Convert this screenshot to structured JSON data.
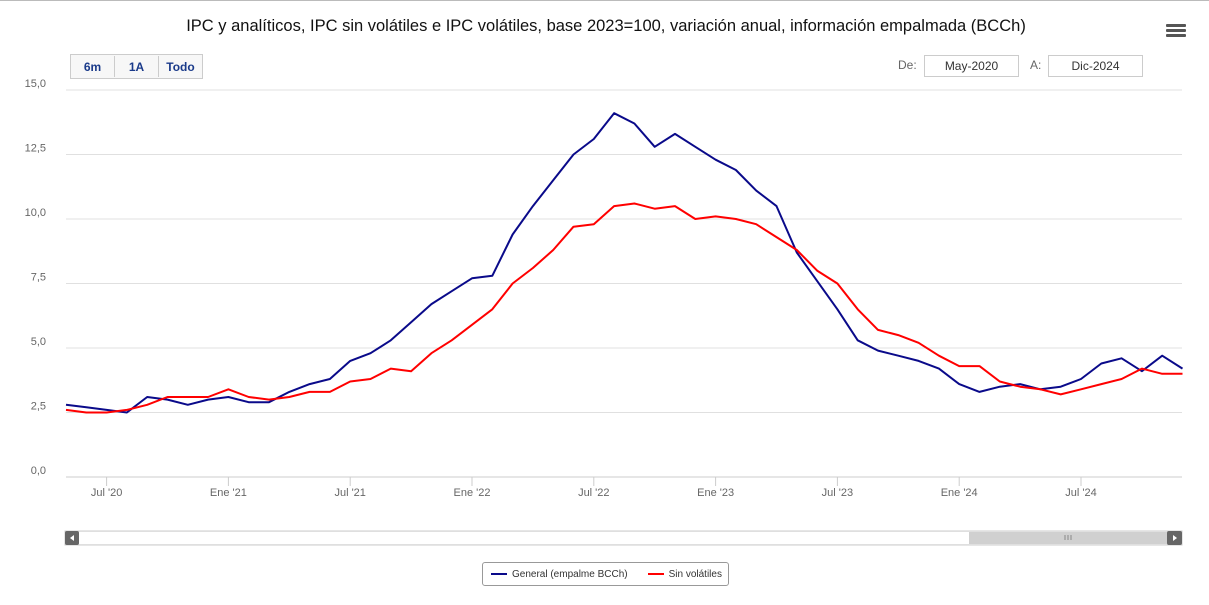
{
  "chart_title": "IPC y analíticos, IPC sin volátiles e IPC volátiles, base 2023=100, variación anual, información empalmada (BCCh)",
  "range_selector": {
    "buttons": [
      "6m",
      "1A",
      "Todo"
    ]
  },
  "date_range": {
    "from_label": "De:",
    "from_value": "May-2020",
    "to_label": "A:",
    "to_value": "Dic-2024"
  },
  "legend": {
    "items": [
      "General (empalme BCCh)",
      "Sin volátiles"
    ]
  },
  "colors": {
    "general": "#0a0a8a",
    "sin_volatiles": "#ff0000",
    "grid": "#e0e0e0"
  },
  "chart_data": {
    "type": "line",
    "title": "IPC y analíticos, IPC sin volátiles e IPC volátiles, base 2023=100, variación anual, información empalmada (BCCh)",
    "xlabel": "",
    "ylabel": "",
    "ylim": [
      0,
      15
    ],
    "y_ticks": [
      "0,0",
      "2,5",
      "5,0",
      "7,5",
      "10,0",
      "12,5",
      "15,0"
    ],
    "y_tick_values": [
      0,
      2.5,
      5,
      7.5,
      10,
      12.5,
      15
    ],
    "x_tick_labels": [
      "Jul '20",
      "Ene '21",
      "Jul '21",
      "Ene '22",
      "Jul '22",
      "Ene '23",
      "Jul '23",
      "Ene '24",
      "Jul '24"
    ],
    "x_tick_month_index": [
      2,
      8,
      14,
      20,
      26,
      32,
      38,
      44,
      50
    ],
    "x": [
      "May-2020",
      "Jun-2020",
      "Jul-2020",
      "Ago-2020",
      "Sep-2020",
      "Oct-2020",
      "Nov-2020",
      "Dic-2020",
      "Ene-2021",
      "Feb-2021",
      "Mar-2021",
      "Abr-2021",
      "May-2021",
      "Jun-2021",
      "Jul-2021",
      "Ago-2021",
      "Sep-2021",
      "Oct-2021",
      "Nov-2021",
      "Dic-2021",
      "Ene-2022",
      "Feb-2022",
      "Mar-2022",
      "Abr-2022",
      "May-2022",
      "Jun-2022",
      "Jul-2022",
      "Ago-2022",
      "Sep-2022",
      "Oct-2022",
      "Nov-2022",
      "Dic-2022",
      "Ene-2023",
      "Feb-2023",
      "Mar-2023",
      "Abr-2023",
      "May-2023",
      "Jun-2023",
      "Jul-2023",
      "Ago-2023",
      "Sep-2023",
      "Oct-2023",
      "Nov-2023",
      "Dic-2023",
      "Ene-2024",
      "Feb-2024",
      "Mar-2024",
      "Abr-2024",
      "May-2024",
      "Jun-2024",
      "Jul-2024",
      "Ago-2024",
      "Sep-2024",
      "Oct-2024",
      "Nov-2024",
      "Dic-2024"
    ],
    "series": [
      {
        "name": "General (empalme BCCh)",
        "values": [
          2.8,
          2.7,
          2.6,
          2.5,
          3.1,
          3.0,
          2.8,
          3.0,
          3.1,
          2.9,
          2.9,
          3.3,
          3.6,
          3.8,
          4.5,
          4.8,
          5.3,
          6.0,
          6.7,
          7.2,
          7.7,
          7.8,
          9.4,
          10.5,
          11.5,
          12.5,
          13.1,
          14.1,
          13.7,
          12.8,
          13.3,
          12.8,
          12.3,
          11.9,
          11.1,
          10.5,
          8.7,
          7.6,
          6.5,
          5.3,
          4.9,
          4.7,
          4.5,
          4.2,
          3.6,
          3.3,
          3.5,
          3.6,
          3.4,
          3.5,
          3.8,
          4.4,
          4.6,
          4.1,
          4.7,
          4.2
        ]
      },
      {
        "name": "Sin volátiles",
        "values": [
          2.6,
          2.5,
          2.5,
          2.6,
          2.8,
          3.1,
          3.1,
          3.1,
          3.4,
          3.1,
          3.0,
          3.1,
          3.3,
          3.3,
          3.7,
          3.8,
          4.2,
          4.1,
          4.8,
          5.3,
          5.9,
          6.5,
          7.5,
          8.1,
          8.8,
          9.7,
          9.8,
          10.5,
          10.6,
          10.4,
          10.5,
          10.0,
          10.1,
          10.0,
          9.8,
          9.3,
          8.8,
          8.0,
          7.5,
          6.5,
          5.7,
          5.5,
          5.2,
          4.7,
          4.3,
          4.3,
          3.7,
          3.5,
          3.4,
          3.2,
          3.4,
          3.6,
          3.8,
          4.2,
          4.0,
          4.0
        ]
      }
    ]
  }
}
